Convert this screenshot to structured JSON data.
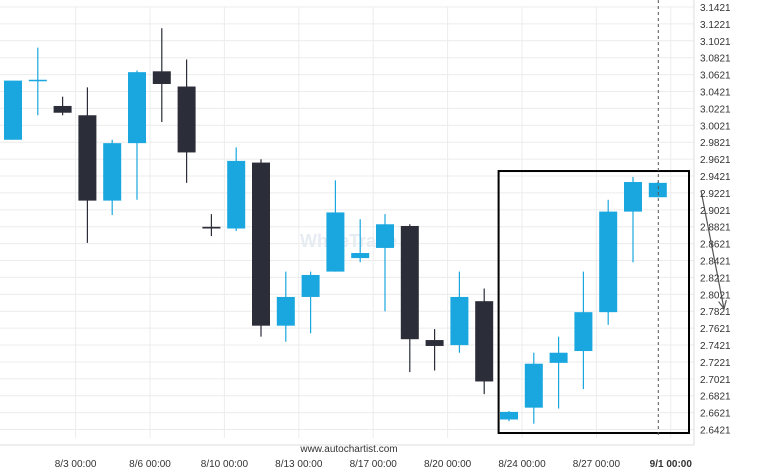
{
  "chart_data": {
    "type": "candlestick",
    "source_label": "www.autochartist.com",
    "watermark": "WhiteTrade",
    "colors": {
      "bullish": "#1aa7e0",
      "bearish": "#2b2d38",
      "grid": "#ececec",
      "pattern_box": "#000000",
      "forecast_arrow": "#555555",
      "vline": "#555555"
    },
    "ylim": [
      2.6321,
      3.1421
    ],
    "yticks": [
      "3.1421",
      "3.1221",
      "3.1021",
      "3.0821",
      "3.0621",
      "3.0421",
      "3.0221",
      "3.0021",
      "2.9821",
      "2.9621",
      "2.9421",
      "2.9221",
      "2.9021",
      "2.8821",
      "2.8621",
      "2.8421",
      "2.8221",
      "2.8021",
      "2.7821",
      "2.7621",
      "2.7421",
      "2.7221",
      "2.7021",
      "2.6821",
      "2.6621",
      "2.6421"
    ],
    "xticks": [
      {
        "label": "8/3 00:00",
        "index": 2,
        "bold": false
      },
      {
        "label": "8/6 00:00",
        "index": 5,
        "bold": false
      },
      {
        "label": "8/10 00:00",
        "index": 8,
        "bold": false
      },
      {
        "label": "8/13 00:00",
        "index": 11,
        "bold": false
      },
      {
        "label": "8/17 00:00",
        "index": 14,
        "bold": false
      },
      {
        "label": "8/20 00:00",
        "index": 17,
        "bold": false
      },
      {
        "label": "8/24 00:00",
        "index": 20,
        "bold": false
      },
      {
        "label": "8/27 00:00",
        "index": 23,
        "bold": false
      },
      {
        "label": "9/1 00:00",
        "index": 26,
        "bold": true
      }
    ],
    "candles": [
      {
        "o": 2.985,
        "h": 3.055,
        "l": 2.985,
        "c": 3.055
      },
      {
        "o": 3.055,
        "h": 3.094,
        "l": 3.014,
        "c": 3.056
      },
      {
        "o": 3.025,
        "h": 3.036,
        "l": 3.014,
        "c": 3.017
      },
      {
        "o": 3.014,
        "h": 3.047,
        "l": 2.863,
        "c": 2.913
      },
      {
        "o": 2.913,
        "h": 2.985,
        "l": 2.896,
        "c": 2.981
      },
      {
        "o": 2.981,
        "h": 3.067,
        "l": 2.914,
        "c": 3.065
      },
      {
        "o": 3.066,
        "h": 3.117,
        "l": 3.006,
        "c": 3.051
      },
      {
        "o": 3.048,
        "h": 3.08,
        "l": 2.934,
        "c": 2.97
      },
      {
        "o": 2.882,
        "h": 2.897,
        "l": 2.871,
        "c": 2.88
      },
      {
        "o": 2.88,
        "h": 2.976,
        "l": 2.877,
        "c": 2.96
      },
      {
        "o": 2.958,
        "h": 2.962,
        "l": 2.752,
        "c": 2.765
      },
      {
        "o": 2.765,
        "h": 2.829,
        "l": 2.746,
        "c": 2.799
      },
      {
        "o": 2.799,
        "h": 2.829,
        "l": 2.756,
        "c": 2.825
      },
      {
        "o": 2.829,
        "h": 2.937,
        "l": 2.829,
        "c": 2.899
      },
      {
        "o": 2.845,
        "h": 2.891,
        "l": 2.84,
        "c": 2.851
      },
      {
        "o": 2.857,
        "h": 2.897,
        "l": 2.782,
        "c": 2.885
      },
      {
        "o": 2.883,
        "h": 2.885,
        "l": 2.71,
        "c": 2.749
      },
      {
        "o": 2.748,
        "h": 2.761,
        "l": 2.712,
        "c": 2.741
      },
      {
        "o": 2.742,
        "h": 2.829,
        "l": 2.733,
        "c": 2.799
      },
      {
        "o": 2.794,
        "h": 2.809,
        "l": 2.684,
        "c": 2.699
      },
      {
        "o": 2.654,
        "h": 2.664,
        "l": 2.652,
        "c": 2.663
      },
      {
        "o": 2.668,
        "h": 2.733,
        "l": 2.649,
        "c": 2.72
      },
      {
        "o": 2.721,
        "h": 2.752,
        "l": 2.667,
        "c": 2.733
      },
      {
        "o": 2.735,
        "h": 2.829,
        "l": 2.69,
        "c": 2.781
      },
      {
        "o": 2.781,
        "h": 2.914,
        "l": 2.766,
        "c": 2.9
      },
      {
        "o": 2.9,
        "h": 2.941,
        "l": 2.84,
        "c": 2.935
      },
      {
        "o": 2.917,
        "h": 2.935,
        "l": 2.917,
        "c": 2.934
      }
    ],
    "pattern_box": {
      "from_index": 19.5,
      "to_index": 27.5,
      "top": 2.948,
      "bottom": 2.638
    },
    "forecast_arrow": {
      "from_value": 2.925,
      "to_value": 2.785
    },
    "vline_index": 26
  }
}
